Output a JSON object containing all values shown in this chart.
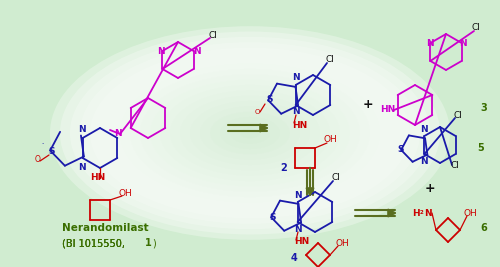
{
  "bg_color": "#d0ecd0",
  "blue": "#1a1aaa",
  "magenta": "#cc00cc",
  "red": "#cc0000",
  "dark_green": "#3a6e00",
  "black": "#111111",
  "label_nerandomilast": "Nerandomilast",
  "label_bi": "(BI 1015550, ",
  "label_bi2": "1",
  "label_bi3": ")",
  "figsize": [
    5.0,
    2.67
  ],
  "dpi": 100
}
